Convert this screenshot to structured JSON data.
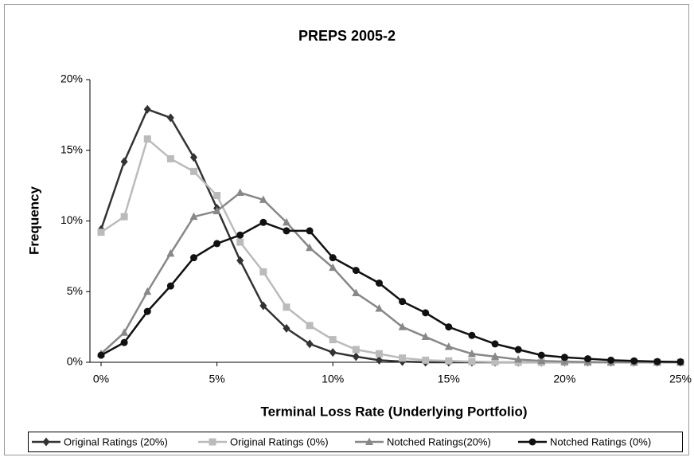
{
  "chart_data": {
    "type": "line",
    "title": "PREPS 2005-2",
    "x_label": "Terminal Loss Rate (Underlying Portfolio)",
    "y_label": "Frequency",
    "x": [
      0,
      1,
      2,
      3,
      4,
      5,
      6,
      7,
      8,
      9,
      10,
      11,
      12,
      13,
      14,
      15,
      16,
      17,
      18,
      19,
      20,
      21,
      22,
      23,
      24,
      25
    ],
    "series": [
      {
        "name": "Original Ratings (20%)",
        "color": "#333333",
        "marker": "diamond",
        "values": [
          9.4,
          14.2,
          17.9,
          17.3,
          14.5,
          10.9,
          7.2,
          4.0,
          2.4,
          1.3,
          0.7,
          0.4,
          0.15,
          0.05,
          0,
          0,
          0,
          0,
          0,
          0,
          0,
          0,
          0,
          0,
          0,
          0
        ]
      },
      {
        "name": "Original Ratings (0%)",
        "color": "#bbbbbb",
        "marker": "square",
        "values": [
          9.2,
          10.3,
          15.8,
          14.4,
          13.5,
          11.8,
          8.5,
          6.4,
          3.9,
          2.6,
          1.6,
          0.9,
          0.6,
          0.3,
          0.15,
          0.1,
          0.05,
          0.02,
          0,
          0,
          0,
          0,
          0,
          0,
          0,
          0
        ]
      },
      {
        "name": "Notched Ratings(20%)",
        "color": "#888888",
        "marker": "triangle",
        "values": [
          0.6,
          2.1,
          5.0,
          7.7,
          10.3,
          10.7,
          12.0,
          11.5,
          9.9,
          8.1,
          6.7,
          4.9,
          3.8,
          2.5,
          1.8,
          1.1,
          0.6,
          0.4,
          0.2,
          0.1,
          0.05,
          0.02,
          0,
          0,
          0,
          0
        ]
      },
      {
        "name": "Notched Ratings (0%)",
        "color": "#111111",
        "marker": "circle",
        "values": [
          0.5,
          1.4,
          3.6,
          5.4,
          7.4,
          8.4,
          9.0,
          9.9,
          9.3,
          9.3,
          7.4,
          6.5,
          5.6,
          4.3,
          3.5,
          2.5,
          1.9,
          1.3,
          0.9,
          0.5,
          0.35,
          0.25,
          0.15,
          0.1,
          0.05,
          0.03
        ]
      }
    ],
    "xlim": [
      0,
      25
    ],
    "ylim": [
      0,
      20
    ],
    "xticks": [
      {
        "value": 0,
        "label": "0%"
      },
      {
        "value": 5,
        "label": "5%"
      },
      {
        "value": 10,
        "label": "10%"
      },
      {
        "value": 15,
        "label": "15%"
      },
      {
        "value": 20,
        "label": "20%"
      },
      {
        "value": 25,
        "label": "25%"
      }
    ],
    "yticks": [
      {
        "value": 0,
        "label": "0%"
      },
      {
        "value": 5,
        "label": "5%"
      },
      {
        "value": 10,
        "label": "10%"
      },
      {
        "value": 15,
        "label": "15%"
      },
      {
        "value": 20,
        "label": "20%"
      }
    ],
    "grid": false,
    "legend": "bottom"
  }
}
